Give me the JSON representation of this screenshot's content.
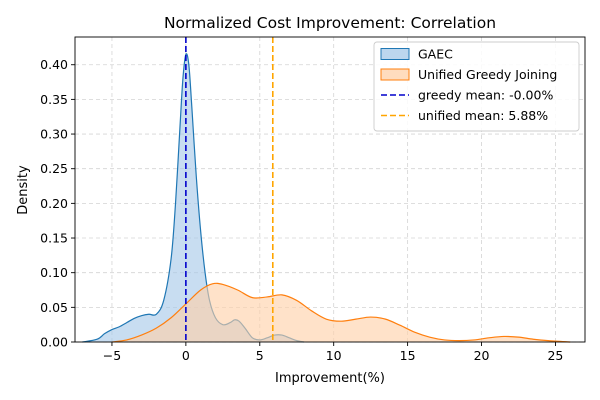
{
  "chart_data": {
    "type": "area",
    "title": "Normalized Cost Improvement: Correlation",
    "xlabel": "Improvement(%)",
    "ylabel": "Density",
    "xlim": [
      -7.5,
      27.0
    ],
    "ylim": [
      0,
      0.44
    ],
    "xticks": [
      -5,
      0,
      5,
      10,
      15,
      20,
      25
    ],
    "xtick_labels": [
      "−5",
      "0",
      "5",
      "10",
      "15",
      "20",
      "25"
    ],
    "yticks": [
      0.0,
      0.05,
      0.1,
      0.15,
      0.2,
      0.25,
      0.3,
      0.35,
      0.4
    ],
    "ytick_labels": [
      "0.00",
      "0.05",
      "0.10",
      "0.15",
      "0.20",
      "0.25",
      "0.30",
      "0.35",
      "0.40"
    ],
    "grid": true,
    "legend_position": "top-right",
    "series": [
      {
        "name": "GAEC",
        "kind": "density",
        "line_color": "#1f77b4",
        "fill_color": "#a6c8e8",
        "x": [
          -7.0,
          -6.0,
          -5.5,
          -5.0,
          -4.5,
          -4.0,
          -3.5,
          -3.0,
          -2.5,
          -2.0,
          -1.5,
          -1.0,
          -0.7,
          -0.4,
          -0.2,
          0.0,
          0.2,
          0.4,
          0.7,
          1.0,
          1.3,
          1.6,
          2.0,
          2.5,
          3.0,
          3.3,
          3.6,
          4.0,
          4.5,
          5.0,
          5.5,
          6.0,
          6.5,
          7.0,
          7.5,
          8.0
        ],
        "y": [
          0.0,
          0.004,
          0.012,
          0.018,
          0.022,
          0.028,
          0.034,
          0.038,
          0.04,
          0.04,
          0.06,
          0.12,
          0.2,
          0.31,
          0.38,
          0.415,
          0.4,
          0.34,
          0.24,
          0.16,
          0.1,
          0.06,
          0.035,
          0.025,
          0.028,
          0.032,
          0.03,
          0.02,
          0.006,
          0.003,
          0.006,
          0.01,
          0.01,
          0.006,
          0.002,
          0.0
        ]
      },
      {
        "name": "Unified Greedy Joining",
        "kind": "density",
        "line_color": "#ff7f0e",
        "fill_color": "#ffd0a8",
        "x": [
          -5.0,
          -4.0,
          -3.0,
          -2.0,
          -1.0,
          0.0,
          1.0,
          1.8,
          2.5,
          3.5,
          4.5,
          5.5,
          6.5,
          7.5,
          8.5,
          9.5,
          10.5,
          11.5,
          12.5,
          13.5,
          14.5,
          15.5,
          16.5,
          17.5,
          18.5,
          19.5,
          20.5,
          21.5,
          22.5,
          23.5,
          24.5,
          26.0
        ],
        "y": [
          0.0,
          0.003,
          0.01,
          0.02,
          0.035,
          0.055,
          0.075,
          0.084,
          0.083,
          0.075,
          0.064,
          0.065,
          0.068,
          0.06,
          0.045,
          0.033,
          0.03,
          0.033,
          0.036,
          0.033,
          0.024,
          0.014,
          0.007,
          0.003,
          0.002,
          0.003,
          0.006,
          0.008,
          0.007,
          0.004,
          0.002,
          0.0
        ]
      }
    ],
    "vlines": [
      {
        "name": "greedy mean: -0.00%",
        "x": 0.0,
        "color": "#0000cc"
      },
      {
        "name": "unified mean: 5.88%",
        "x": 5.88,
        "color": "#ffa500"
      }
    ]
  }
}
